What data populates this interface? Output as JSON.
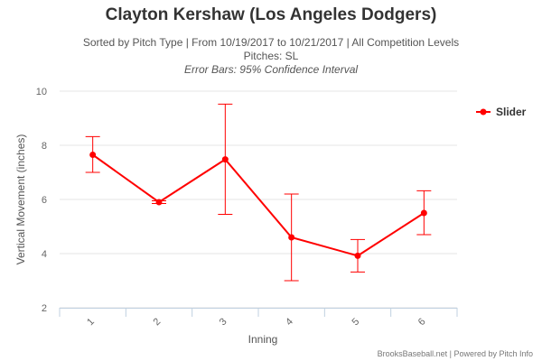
{
  "chart_data": {
    "type": "line",
    "title": "Clayton Kershaw (Los Angeles Dodgers)",
    "subtitle": "Sorted by Pitch Type | From 10/19/2017 to 10/21/2017 | All Competition Levels",
    "pitches_line": "Pitches: SL",
    "error_note": "Error Bars: 95% Confidence Interval",
    "xlabel": "Inning",
    "ylabel": "Vertical Movement (inches)",
    "categories": [
      "1",
      "2",
      "3",
      "4",
      "5",
      "6"
    ],
    "ylim": [
      2,
      10
    ],
    "yticks": [
      "2",
      "4",
      "6",
      "8",
      "10"
    ],
    "series": [
      {
        "name": "Slider",
        "color": "#ff0000",
        "values": [
          7.65,
          5.9,
          7.48,
          4.6,
          3.92,
          5.5
        ],
        "error_low": [
          7.0,
          5.85,
          5.45,
          3.0,
          3.32,
          4.7
        ],
        "error_high": [
          8.32,
          5.95,
          9.52,
          6.2,
          4.52,
          6.32
        ]
      }
    ],
    "legend_position": "right",
    "credit": "BrooksBaseball.net | Powered by Pitch Info"
  }
}
